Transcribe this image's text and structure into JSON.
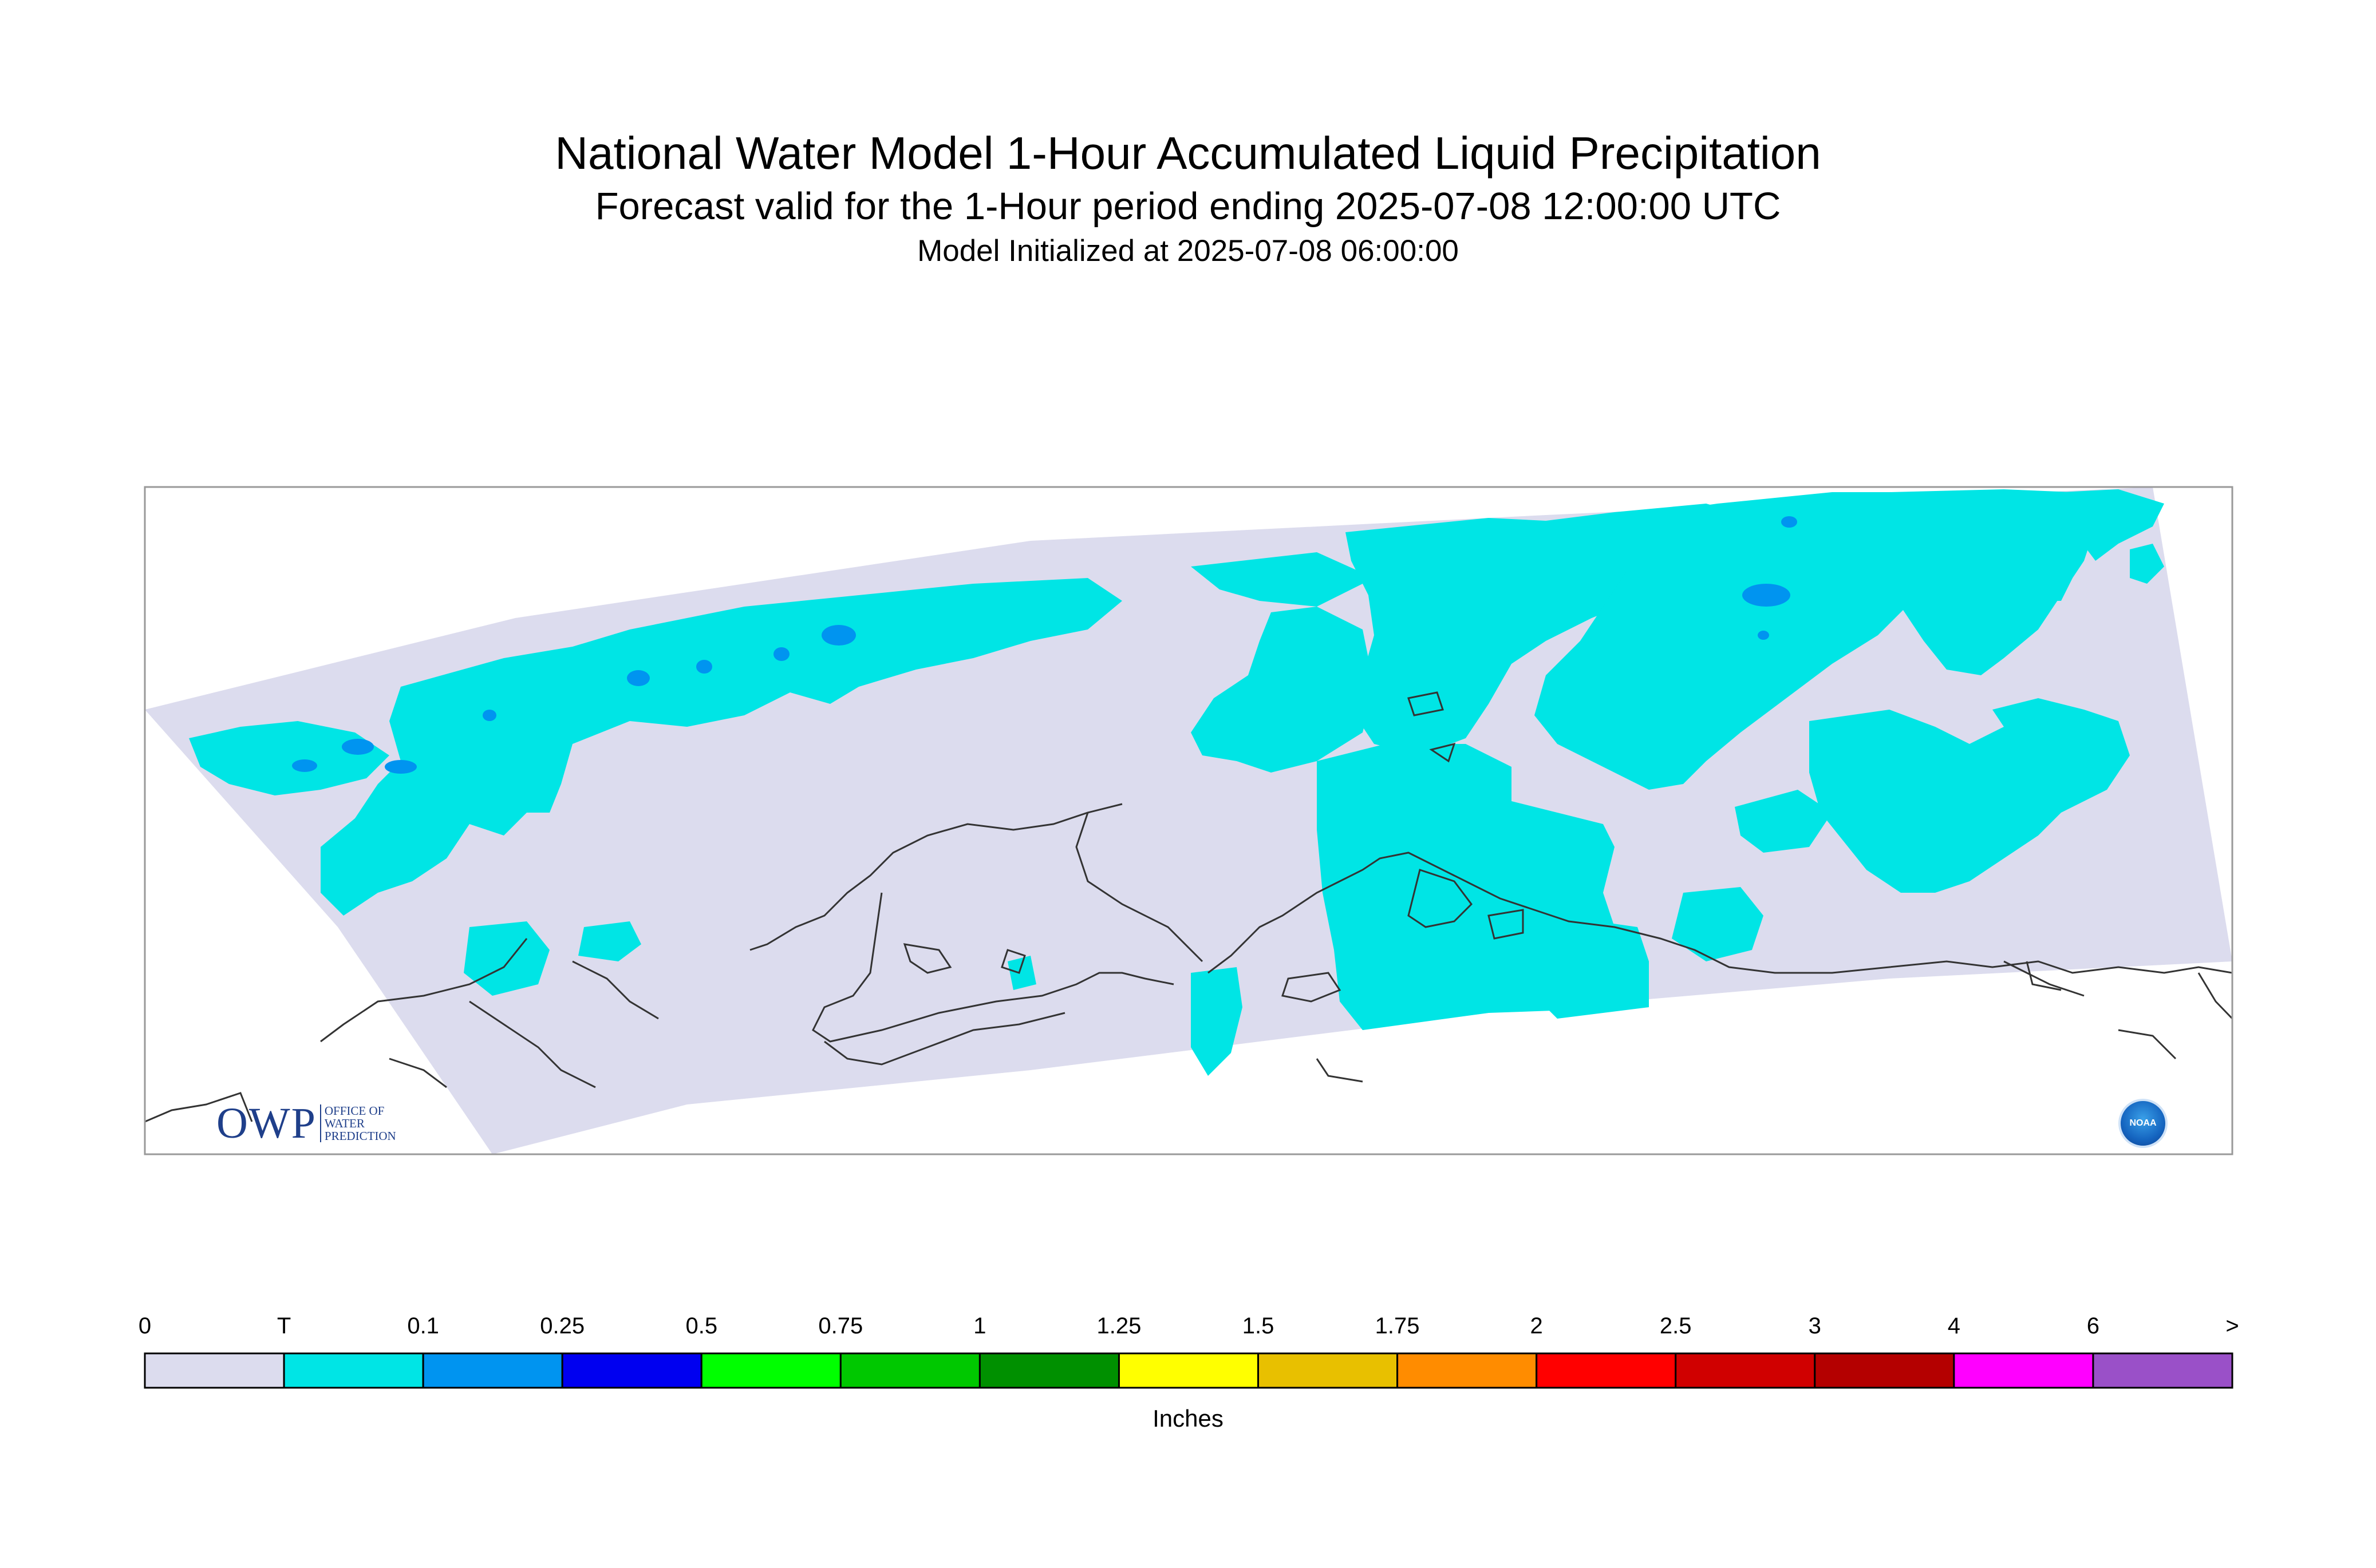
{
  "header": {
    "title": "National Water Model 1-Hour Accumulated Liquid Precipitation",
    "subtitle": "Forecast valid for the 1-Hour period ending 2025-07-08 12:00:00 UTC",
    "init_text": "Model Initialized at 2025-07-08 06:00:00"
  },
  "map": {
    "background_color": "#dcdcee",
    "trace_color": "#00e5e5",
    "light_color": "#0094f0",
    "coastline_color": "#333333",
    "owp_logo": {
      "main": "OWP",
      "line1": "Office of",
      "line2": "Water",
      "line3": "Prediction"
    },
    "noaa_logo": "NOAA"
  },
  "colorbar": {
    "units": "Inches",
    "labels": [
      "0",
      "T",
      "0.1",
      "0.25",
      "0.5",
      "0.75",
      "1",
      "1.25",
      "1.5",
      "1.75",
      "2",
      "2.5",
      "3",
      "4",
      "6",
      ">"
    ],
    "colors": [
      "#dcdcee",
      "#00e5e5",
      "#0094f0",
      "#0000f0",
      "#00ff00",
      "#00c800",
      "#009000",
      "#ffff00",
      "#e8c000",
      "#ff8c00",
      "#ff0000",
      "#d00000",
      "#b40000",
      "#ff00ff",
      "#9a50c8"
    ]
  }
}
